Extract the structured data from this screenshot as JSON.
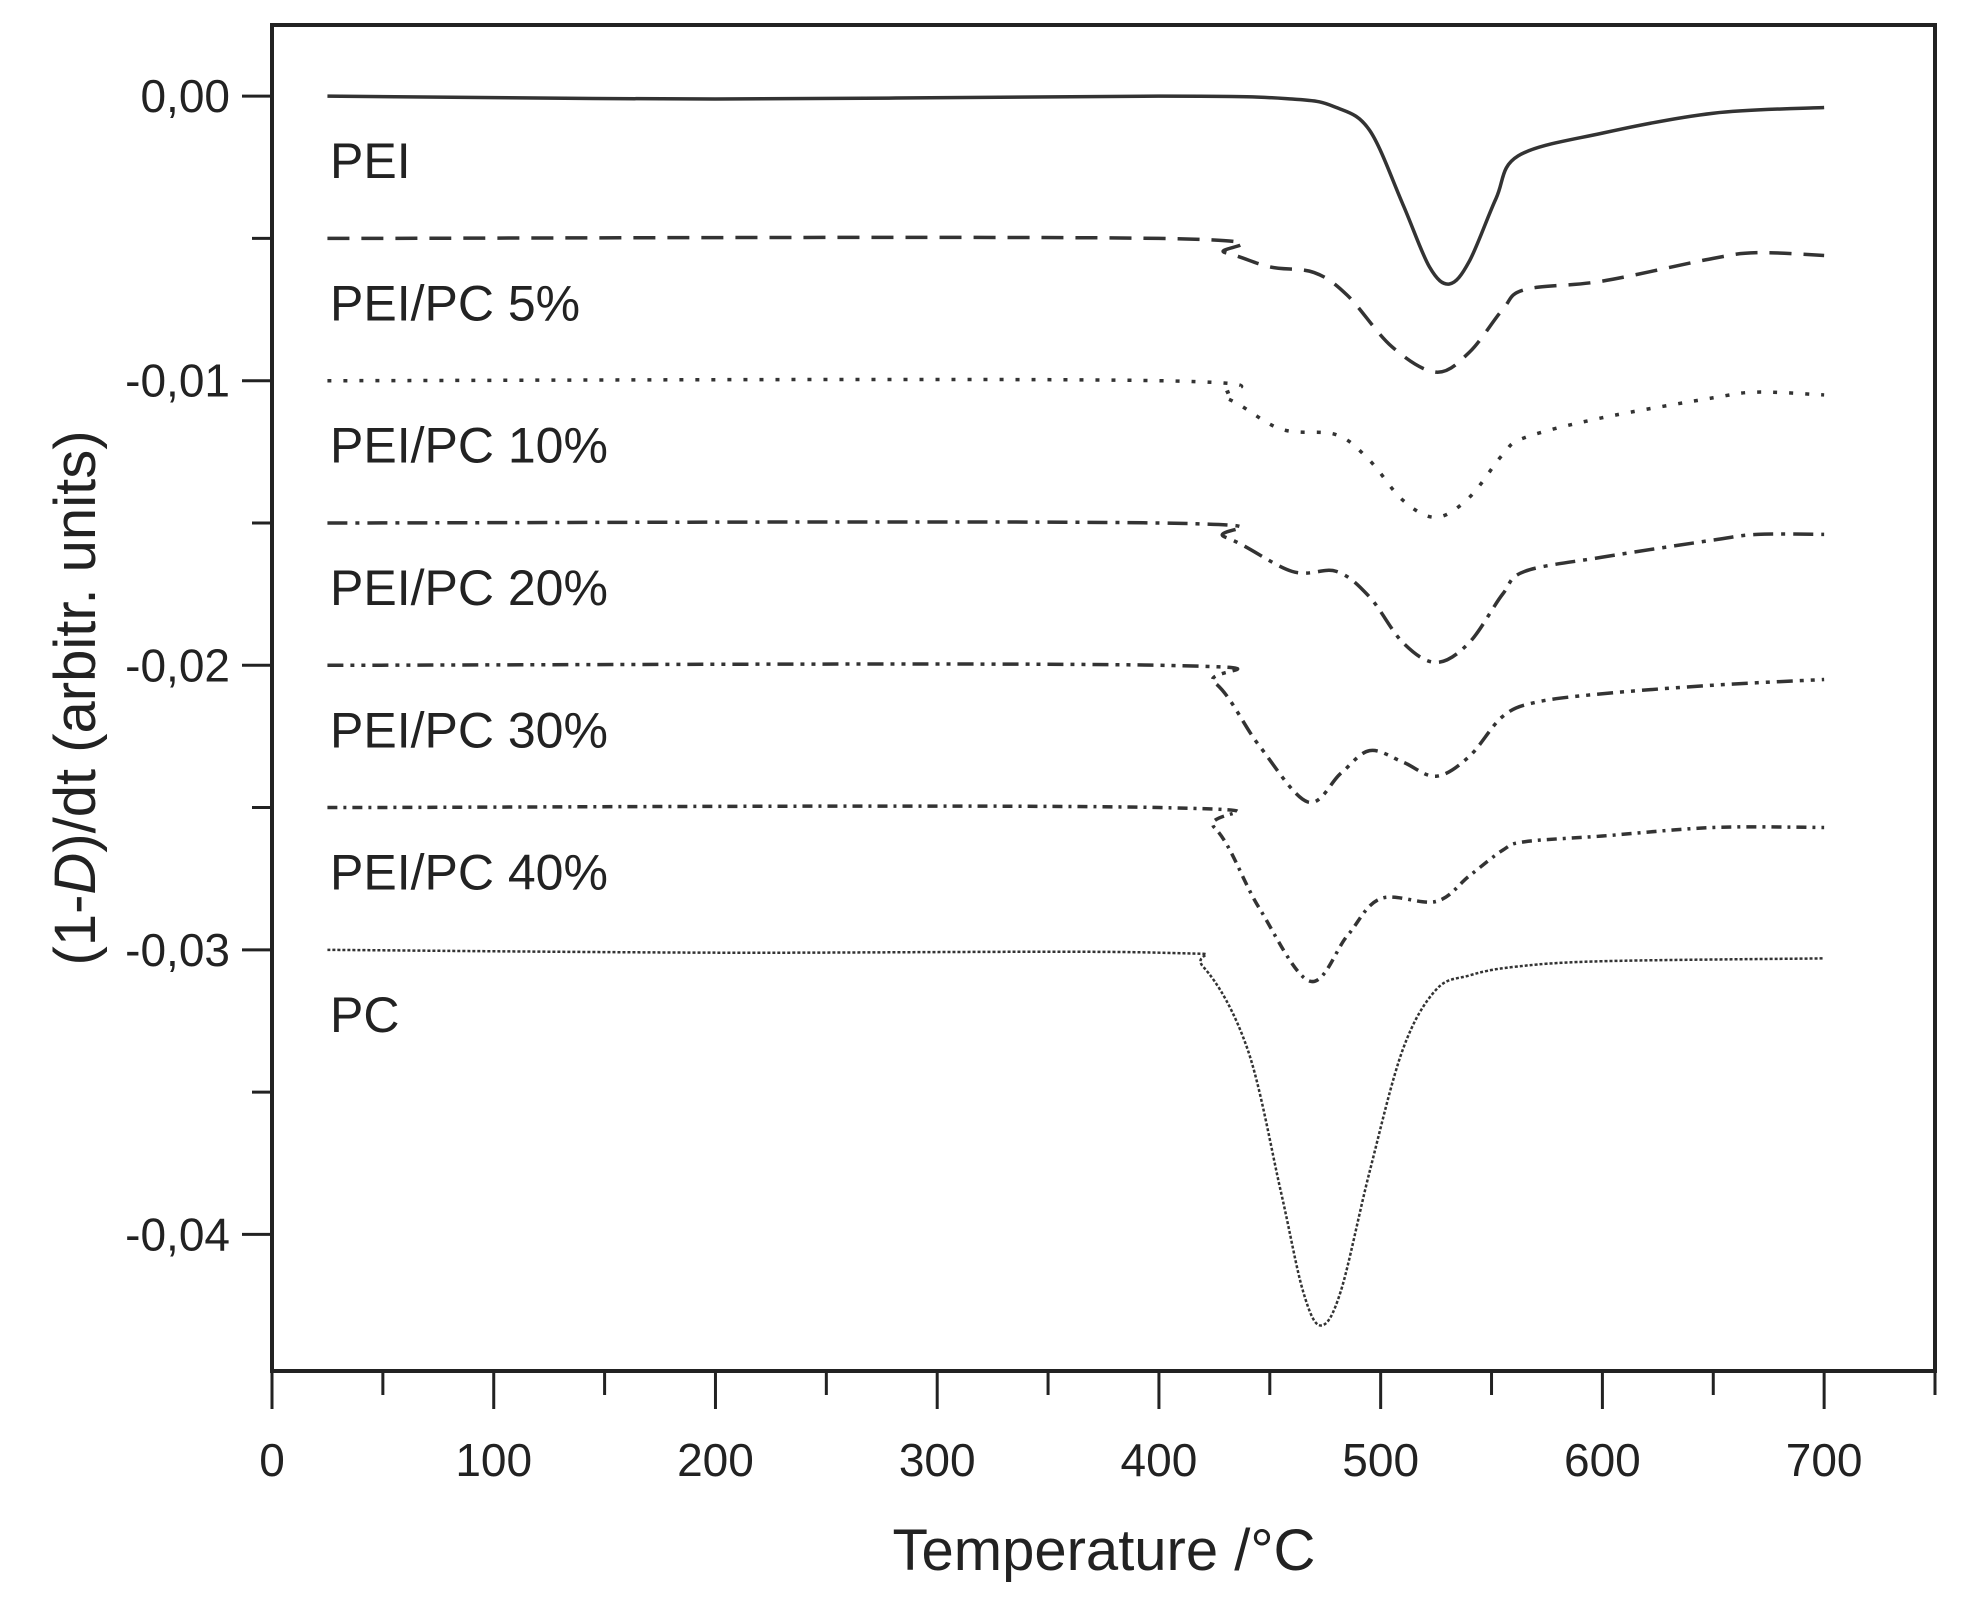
{
  "chart_data": {
    "type": "line",
    "title": "",
    "xlabel": "Temperature /°C",
    "ylabel_parts": [
      "(1-",
      "D",
      ")/dt (arbitr. units)"
    ],
    "ylabel": "(1-D)/dt (arbitr. units)",
    "xlim": [
      0,
      750
    ],
    "ylim": [
      -0.0448,
      0.0025
    ],
    "x_ticks": [
      0,
      100,
      200,
      300,
      400,
      500,
      600,
      700
    ],
    "x_tick_labels": [
      "0",
      "100",
      "200",
      "300",
      "400",
      "500",
      "600",
      "700"
    ],
    "y_ticks": [
      0,
      -0.01,
      -0.02,
      -0.03,
      -0.04
    ],
    "y_tick_labels": [
      "0,00",
      "-0,01",
      "-0,02",
      "-0,03",
      "-0,04"
    ],
    "grid": false,
    "legend": "inline labels below each curve on the left",
    "line_color": "#333333",
    "series": [
      {
        "name": "PEI",
        "style": "solid",
        "x": [
          25,
          200,
          400,
          460,
          480,
          495,
          510,
          522,
          531,
          540,
          552,
          562,
          600,
          650,
          700
        ],
        "y": [
          0,
          -0.0001,
          0,
          -0.0001,
          -0.0004,
          -0.0012,
          -0.0038,
          -0.006,
          -0.0066,
          -0.0058,
          -0.0036,
          -0.0021,
          -0.0013,
          -0.0006,
          -0.0004
        ]
      },
      {
        "name": "PEI/PC 5%",
        "style": "dashed",
        "x": [
          25,
          400,
          430,
          450,
          470,
          485,
          505,
          525,
          540,
          555,
          565,
          600,
          650,
          670,
          700
        ],
        "y": [
          -0.005,
          -0.005,
          -0.0055,
          -0.006,
          -0.0062,
          -0.007,
          -0.0088,
          -0.0097,
          -0.009,
          -0.0075,
          -0.0068,
          -0.0065,
          -0.0057,
          -0.0055,
          -0.0056
        ]
      },
      {
        "name": "PEI/PC 10%",
        "style": "dotted",
        "x": [
          25,
          400,
          430,
          455,
          480,
          495,
          510,
          525,
          540,
          555,
          565,
          600,
          650,
          670,
          700
        ],
        "y": [
          -0.01,
          -0.01,
          -0.0106,
          -0.0117,
          -0.0119,
          -0.0128,
          -0.0142,
          -0.0148,
          -0.0141,
          -0.0126,
          -0.012,
          -0.0113,
          -0.0106,
          -0.0104,
          -0.0105
        ]
      },
      {
        "name": "PEI/PC 20%",
        "style": "dashdot",
        "x": [
          25,
          400,
          430,
          460,
          480,
          495,
          510,
          525,
          540,
          555,
          565,
          600,
          650,
          670,
          700
        ],
        "y": [
          -0.015,
          -0.015,
          -0.0155,
          -0.0167,
          -0.0167,
          -0.0176,
          -0.0192,
          -0.0199,
          -0.0192,
          -0.0175,
          -0.0167,
          -0.0162,
          -0.0156,
          -0.0154,
          -0.0154
        ]
      },
      {
        "name": "PEI/PC 30%",
        "style": "dashdotdot",
        "x": [
          25,
          400,
          425,
          445,
          467,
          482,
          495,
          510,
          525,
          540,
          555,
          570,
          600,
          650,
          700
        ],
        "y": [
          -0.02,
          -0.02,
          -0.0206,
          -0.0228,
          -0.0248,
          -0.0238,
          -0.023,
          -0.0234,
          -0.0239,
          -0.0232,
          -0.0218,
          -0.0213,
          -0.021,
          -0.0207,
          -0.0205
        ]
      },
      {
        "name": "PEI/PC 40%",
        "style": "shortdashdot",
        "x": [
          25,
          400,
          425,
          445,
          468,
          485,
          500,
          525,
          540,
          555,
          565,
          600,
          650,
          700
        ],
        "y": [
          -0.025,
          -0.025,
          -0.0257,
          -0.0285,
          -0.0311,
          -0.0295,
          -0.0282,
          -0.0283,
          -0.0274,
          -0.0265,
          -0.0262,
          -0.026,
          -0.0257,
          -0.0257
        ]
      },
      {
        "name": "PC",
        "style": "fine",
        "x": [
          25,
          200,
          400,
          420,
          440,
          455,
          465,
          473,
          482,
          495,
          510,
          525,
          540,
          560,
          600,
          700
        ],
        "y": [
          -0.03,
          -0.0301,
          -0.0301,
          -0.0306,
          -0.0335,
          -0.0385,
          -0.042,
          -0.0432,
          -0.042,
          -0.0378,
          -0.0335,
          -0.0314,
          -0.0309,
          -0.0306,
          -0.0304,
          -0.0303
        ]
      }
    ]
  }
}
